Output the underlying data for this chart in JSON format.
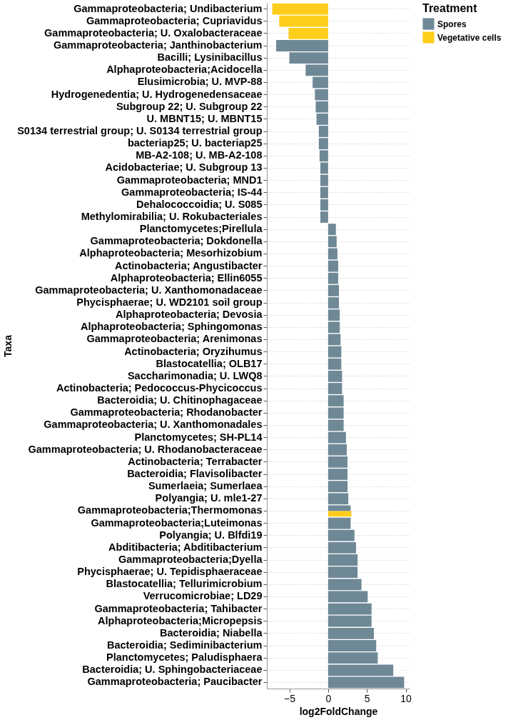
{
  "chart_data": {
    "type": "bar",
    "orientation": "horizontal",
    "xlabel": "log2FoldChange",
    "ylabel": "Taxa",
    "legend_title": "Treatment",
    "legend": "top right",
    "grid": "y",
    "categories": [
      "Gammaproteobacteria; Undibacterium",
      "Gammaproteobacteria; Cupriavidus",
      "Gammaproteobacteria; U. Oxalobacteraceae",
      "Gammaproteobacteria; Janthinobacterium",
      "Bacilli; Lysinibacillus",
      "Alphaproteobacteria;Acidocella",
      "Elusimicrobia; U. MVP-88",
      "Hydrogenedentia; U. Hydrogenedensaceae",
      "Subgroup 22; U. Subgroup 22",
      "U. MBNT15; U. MBNT15",
      "S0134 terrestrial group; U. S0134 terrestrial group",
      "bacteriap25; U. bacteriap25",
      "MB-A2-108; U. MB-A2-108",
      "Acidobacteriae; U. Subgroup 13",
      "Gammaproteobacteria; MND1",
      "Gammaproteobacteria; IS-44",
      "Dehalococcoidia; U. S085",
      "Methylomirabilia; U. Rokubacteriales",
      "Planctomycetes;Pirellula",
      "Gammaproteobacteria; Dokdonella",
      "Alphaproteobacteria; Mesorhizobium",
      "Actinobacteria; Angustibacter",
      "Alphaproteobacteria; Ellin6055",
      "Gammaproteobacteria; U. Xanthomonadaceae",
      "Phycisphaerae; U. WD2101 soil group",
      "Alphaproteobacteria; Devosia",
      "Alphaproteobacteria; Sphingomonas",
      "Gammaproteobacteria; Arenimonas",
      "Actinobacteria; Oryzihumus",
      "Blastocatellia; OLB17",
      "Saccharimonadia; U. LWQ8",
      "Actinobacteria; Pedococcus-Phycicoccus",
      "Bacteroidia; U. Chitinophagaceae",
      "Gammaproteobacteria; Rhodanobacter",
      "Gammaproteobacteria; U. Xanthomonadales",
      "Planctomycetes; SH-PL14",
      "Gammaproteobacteria; U. Rhodanobacteraceae",
      "Actinobacteria; Terrabacter",
      "Bacteroidia; Flavisolibacter",
      "Sumerlaeia; Sumerlaea",
      "Polyangia; U. mle1-27",
      "Gammaproteobacteria;Thermomonas",
      "Gammaproteobacteria;Luteimonas",
      "Polyangia; U. Blfdi19",
      "Abditibacteria; Abditibacterium",
      "Gammaproteobacteria;Dyella",
      "Phycisphaerae; U. Tepidisphaeraceae",
      "Blastocatellia; Tellurimicrobium",
      "Verrucomicrobiae; LD29",
      "Gammaproteobacteria; Tahibacter",
      "Alphaproteobacteria;Micropepsis",
      "Bacteroidia; Niabella",
      "Bacteroidia; Sediminibacterium",
      "Planctomycetes; Paludisphaera",
      "Bacteroidia; U. Sphingobacteriaceae",
      "Gammaproteobacteria; Paucibacter"
    ],
    "series": [
      {
        "name": "Spores",
        "color": "#6f8896",
        "values": [
          null,
          null,
          null,
          -6.7,
          -5.0,
          -2.9,
          -2.0,
          -1.7,
          -1.6,
          -1.5,
          -1.2,
          -1.2,
          -1.1,
          -1.0,
          -1.0,
          -1.0,
          -1.0,
          -1.0,
          1.0,
          1.1,
          1.2,
          1.3,
          1.3,
          1.4,
          1.4,
          1.5,
          1.5,
          1.6,
          1.7,
          1.7,
          1.8,
          1.8,
          2.0,
          2.0,
          2.0,
          2.3,
          2.4,
          2.5,
          2.5,
          2.5,
          2.6,
          2.9,
          2.9,
          3.4,
          3.6,
          3.8,
          3.8,
          4.3,
          5.1,
          5.6,
          5.6,
          5.9,
          6.2,
          6.4,
          8.4,
          9.8
        ]
      },
      {
        "name": "Vegetative cells",
        "color": "#ffcd1c",
        "values": [
          -7.2,
          -6.3,
          -5.1,
          null,
          null,
          null,
          null,
          null,
          null,
          null,
          null,
          null,
          null,
          null,
          null,
          null,
          null,
          null,
          null,
          null,
          null,
          null,
          null,
          null,
          null,
          null,
          null,
          null,
          null,
          null,
          null,
          null,
          null,
          null,
          null,
          null,
          null,
          null,
          null,
          null,
          null,
          3.0,
          null,
          null,
          null,
          null,
          null,
          null,
          null,
          null,
          null,
          null,
          null,
          null,
          null,
          null
        ]
      }
    ],
    "xlim": [
      -7.9,
      10.5
    ],
    "xticks": [
      -5,
      0,
      5,
      10
    ]
  }
}
